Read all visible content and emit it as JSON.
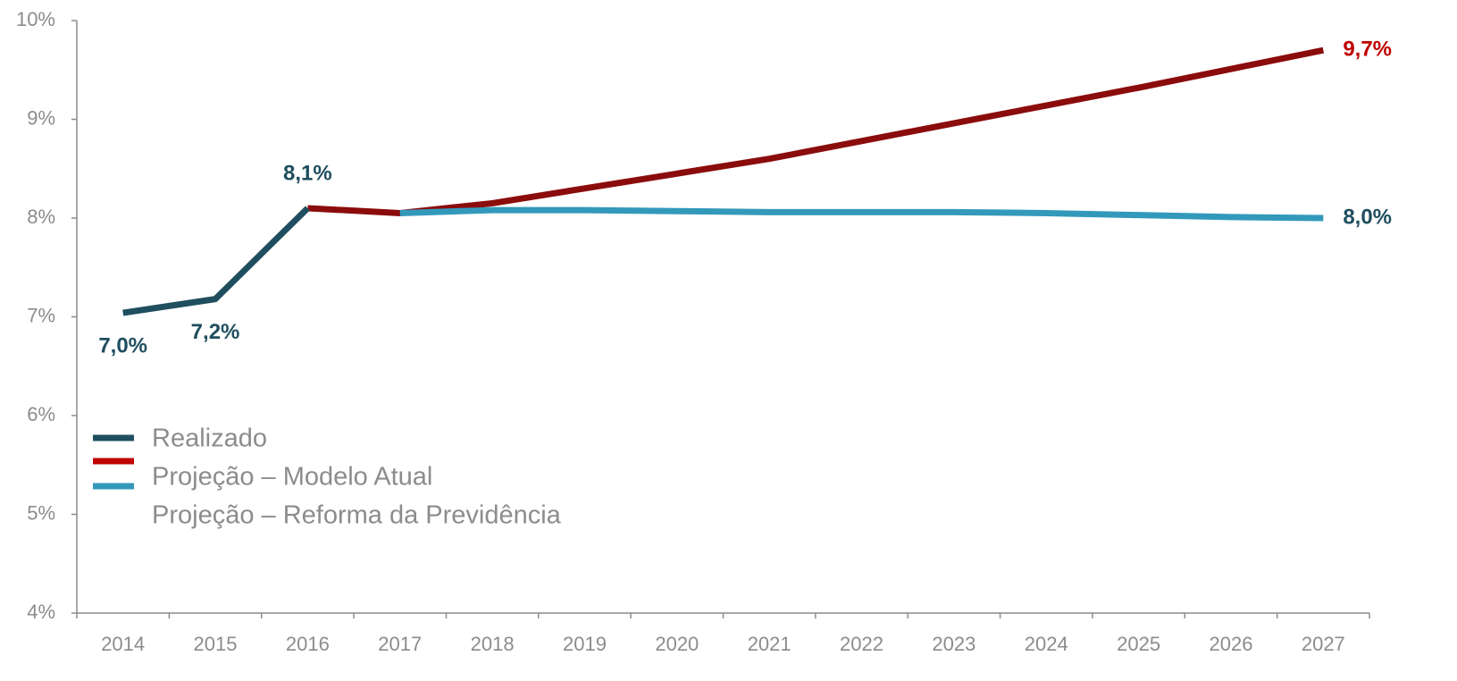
{
  "chart_data": {
    "type": "line",
    "categories": [
      "2014",
      "2015",
      "2016",
      "2017",
      "2018",
      "2019",
      "2020",
      "2021",
      "2022",
      "2023",
      "2024",
      "2025",
      "2026",
      "2027"
    ],
    "series": [
      {
        "name": "Realizado",
        "color": "#1f4e5f",
        "values": [
          7.04,
          7.18,
          8.1,
          null,
          null,
          null,
          null,
          null,
          null,
          null,
          null,
          null,
          null,
          null
        ],
        "value_labels": [
          "7,0%",
          "7,2%",
          "8,1%",
          null,
          null,
          null,
          null,
          null,
          null,
          null,
          null,
          null,
          null,
          null
        ]
      },
      {
        "name": "Projeção – Modelo Atual",
        "color": "#8b0c0c",
        "values": [
          null,
          null,
          8.1,
          8.05,
          8.15,
          8.3,
          8.45,
          8.6,
          8.78,
          8.96,
          9.14,
          9.32,
          9.51,
          9.7
        ],
        "value_labels": [
          null,
          null,
          null,
          null,
          null,
          null,
          null,
          null,
          null,
          null,
          null,
          null,
          null,
          "9,7%"
        ]
      },
      {
        "name": "Projeção – Reforma da Previdência",
        "color": "#3399bb",
        "values": [
          null,
          null,
          null,
          8.05,
          8.08,
          8.08,
          8.07,
          8.06,
          8.06,
          8.06,
          8.05,
          8.03,
          8.01,
          8.0
        ],
        "value_labels": [
          null,
          null,
          null,
          null,
          null,
          null,
          null,
          null,
          null,
          null,
          null,
          null,
          null,
          "8,0%"
        ]
      }
    ],
    "ylim": [
      4,
      10
    ],
    "yticks": [
      {
        "value": 4,
        "label": "4%"
      },
      {
        "value": 5,
        "label": "5%"
      },
      {
        "value": 6,
        "label": "6%"
      },
      {
        "value": 7,
        "label": "7%"
      },
      {
        "value": 8,
        "label": "8%"
      },
      {
        "value": 9,
        "label": "9%"
      },
      {
        "value": 10,
        "label": "10%"
      }
    ],
    "grid": false,
    "legend": "left"
  }
}
